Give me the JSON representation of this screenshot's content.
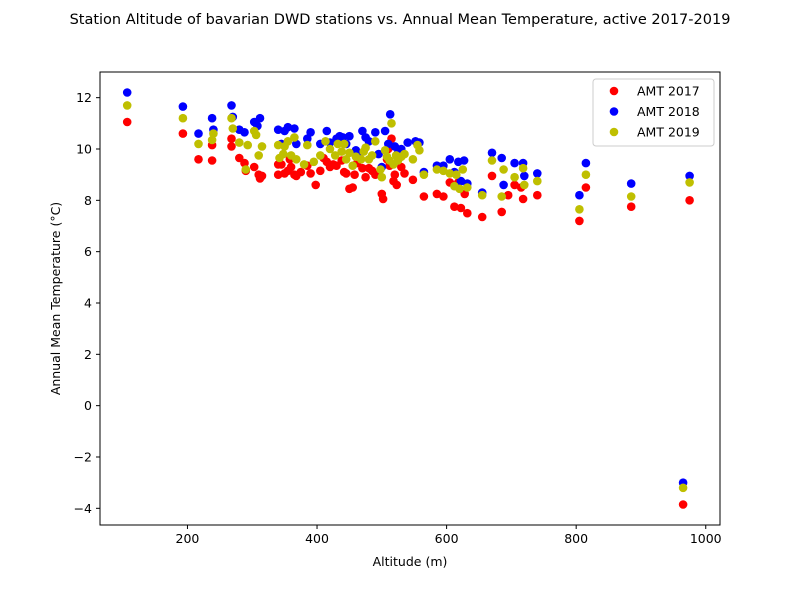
{
  "chart_data": {
    "type": "scatter",
    "title": "Station Altitude of bavarian DWD stations vs. Annual Mean Temperature, active 2017-2019",
    "xlabel": "Altitude (m)",
    "ylabel": "Annual Mean Temperature (°C)",
    "xlim": [
      65,
      1022
    ],
    "ylim": [
      -4.65,
      13.0
    ],
    "xticks": [
      200,
      400,
      600,
      800,
      1000
    ],
    "yticks": [
      -4,
      -2,
      0,
      2,
      4,
      6,
      8,
      10,
      12
    ],
    "ytick_labels": [
      "−4",
      "−2",
      "0",
      "2",
      "4",
      "6",
      "8",
      "10",
      "12"
    ],
    "grid": false,
    "legend_position": "top-right",
    "series": [
      {
        "name": "AMT 2017",
        "color": "#ff0000",
        "points": [
          [
            107,
            11.05
          ],
          [
            193,
            10.6
          ],
          [
            217,
            9.6
          ],
          [
            238,
            9.55
          ],
          [
            238,
            10.15
          ],
          [
            268,
            10.1
          ],
          [
            268,
            10.4
          ],
          [
            280,
            9.65
          ],
          [
            288,
            9.45
          ],
          [
            290,
            9.15
          ],
          [
            303,
            9.3
          ],
          [
            310,
            9.0
          ],
          [
            312,
            8.85
          ],
          [
            315,
            8.95
          ],
          [
            340,
            9.0
          ],
          [
            340,
            9.4
          ],
          [
            345,
            9.4
          ],
          [
            350,
            9.05
          ],
          [
            355,
            9.15
          ],
          [
            358,
            9.6
          ],
          [
            360,
            9.3
          ],
          [
            365,
            9.0
          ],
          [
            368,
            8.95
          ],
          [
            375,
            9.1
          ],
          [
            385,
            9.35
          ],
          [
            390,
            9.05
          ],
          [
            398,
            8.6
          ],
          [
            405,
            9.15
          ],
          [
            410,
            9.65
          ],
          [
            415,
            9.5
          ],
          [
            420,
            9.3
          ],
          [
            425,
            9.4
          ],
          [
            430,
            9.35
          ],
          [
            438,
            9.55
          ],
          [
            442,
            9.1
          ],
          [
            445,
            9.05
          ],
          [
            450,
            8.45
          ],
          [
            455,
            8.5
          ],
          [
            458,
            9.0
          ],
          [
            462,
            9.45
          ],
          [
            470,
            9.25
          ],
          [
            475,
            8.9
          ],
          [
            480,
            9.25
          ],
          [
            485,
            9.15
          ],
          [
            490,
            9.0
          ],
          [
            500,
            8.25
          ],
          [
            502,
            8.05
          ],
          [
            508,
            9.6
          ],
          [
            510,
            10.0
          ],
          [
            512,
            9.35
          ],
          [
            515,
            10.4
          ],
          [
            518,
            8.75
          ],
          [
            520,
            9.0
          ],
          [
            523,
            8.6
          ],
          [
            530,
            9.3
          ],
          [
            535,
            9.05
          ],
          [
            548,
            8.8
          ],
          [
            565,
            8.15
          ],
          [
            585,
            8.25
          ],
          [
            595,
            8.15
          ],
          [
            605,
            8.7
          ],
          [
            612,
            7.75
          ],
          [
            618,
            8.7
          ],
          [
            622,
            7.7
          ],
          [
            628,
            8.25
          ],
          [
            632,
            7.5
          ],
          [
            655,
            7.35
          ],
          [
            670,
            8.95
          ],
          [
            685,
            7.55
          ],
          [
            695,
            8.2
          ],
          [
            705,
            8.6
          ],
          [
            715,
            8.5
          ],
          [
            718,
            8.05
          ],
          [
            740,
            8.2
          ],
          [
            805,
            7.2
          ],
          [
            815,
            8.5
          ],
          [
            885,
            7.75
          ],
          [
            965,
            -3.85
          ],
          [
            975,
            8.0
          ]
        ]
      },
      {
        "name": "AMT 2018",
        "color": "#0000ff",
        "points": [
          [
            107,
            12.2
          ],
          [
            193,
            11.65
          ],
          [
            217,
            10.6
          ],
          [
            238,
            11.2
          ],
          [
            240,
            10.75
          ],
          [
            268,
            11.7
          ],
          [
            270,
            11.25
          ],
          [
            280,
            10.75
          ],
          [
            288,
            10.65
          ],
          [
            303,
            11.05
          ],
          [
            308,
            10.9
          ],
          [
            312,
            11.2
          ],
          [
            340,
            10.75
          ],
          [
            345,
            10.2
          ],
          [
            350,
            10.7
          ],
          [
            355,
            10.85
          ],
          [
            365,
            10.8
          ],
          [
            368,
            10.2
          ],
          [
            385,
            10.4
          ],
          [
            390,
            10.65
          ],
          [
            405,
            10.2
          ],
          [
            415,
            10.7
          ],
          [
            420,
            10.25
          ],
          [
            430,
            10.4
          ],
          [
            435,
            10.5
          ],
          [
            440,
            10.45
          ],
          [
            445,
            10.2
          ],
          [
            450,
            10.5
          ],
          [
            460,
            9.95
          ],
          [
            465,
            9.8
          ],
          [
            470,
            10.7
          ],
          [
            475,
            10.45
          ],
          [
            480,
            10.3
          ],
          [
            490,
            10.65
          ],
          [
            495,
            9.8
          ],
          [
            500,
            9.3
          ],
          [
            505,
            10.7
          ],
          [
            510,
            10.2
          ],
          [
            513,
            11.35
          ],
          [
            520,
            10.1
          ],
          [
            525,
            9.85
          ],
          [
            530,
            10.0
          ],
          [
            540,
            10.25
          ],
          [
            552,
            10.3
          ],
          [
            558,
            10.25
          ],
          [
            565,
            9.1
          ],
          [
            585,
            9.35
          ],
          [
            595,
            9.35
          ],
          [
            605,
            9.6
          ],
          [
            612,
            9.1
          ],
          [
            618,
            9.5
          ],
          [
            622,
            8.75
          ],
          [
            627,
            9.55
          ],
          [
            632,
            8.65
          ],
          [
            655,
            8.3
          ],
          [
            670,
            9.85
          ],
          [
            685,
            9.65
          ],
          [
            688,
            8.6
          ],
          [
            705,
            9.45
          ],
          [
            718,
            9.45
          ],
          [
            720,
            8.95
          ],
          [
            740,
            9.05
          ],
          [
            805,
            8.2
          ],
          [
            815,
            9.45
          ],
          [
            885,
            8.65
          ],
          [
            965,
            -3.0
          ],
          [
            975,
            8.95
          ]
        ]
      },
      {
        "name": "AMT 2019",
        "color": "#bfbf00",
        "points": [
          [
            107,
            11.7
          ],
          [
            193,
            11.2
          ],
          [
            217,
            10.2
          ],
          [
            238,
            10.35
          ],
          [
            240,
            10.6
          ],
          [
            268,
            11.2
          ],
          [
            270,
            10.8
          ],
          [
            280,
            10.25
          ],
          [
            290,
            9.2
          ],
          [
            293,
            10.15
          ],
          [
            303,
            10.7
          ],
          [
            306,
            10.55
          ],
          [
            310,
            9.75
          ],
          [
            315,
            10.1
          ],
          [
            340,
            10.15
          ],
          [
            342,
            9.65
          ],
          [
            348,
            9.8
          ],
          [
            350,
            10.1
          ],
          [
            355,
            10.3
          ],
          [
            360,
            9.75
          ],
          [
            365,
            10.45
          ],
          [
            368,
            9.6
          ],
          [
            380,
            9.4
          ],
          [
            385,
            10.15
          ],
          [
            395,
            9.5
          ],
          [
            405,
            9.75
          ],
          [
            413,
            10.3
          ],
          [
            420,
            10.0
          ],
          [
            428,
            9.75
          ],
          [
            432,
            10.2
          ],
          [
            438,
            9.9
          ],
          [
            442,
            10.2
          ],
          [
            445,
            9.6
          ],
          [
            450,
            9.85
          ],
          [
            455,
            9.35
          ],
          [
            460,
            9.7
          ],
          [
            468,
            9.6
          ],
          [
            472,
            9.9
          ],
          [
            475,
            10.05
          ],
          [
            480,
            9.6
          ],
          [
            485,
            9.75
          ],
          [
            490,
            10.3
          ],
          [
            498,
            9.2
          ],
          [
            500,
            8.9
          ],
          [
            505,
            9.95
          ],
          [
            508,
            9.7
          ],
          [
            512,
            9.55
          ],
          [
            515,
            11.0
          ],
          [
            518,
            9.4
          ],
          [
            522,
            9.75
          ],
          [
            525,
            9.55
          ],
          [
            530,
            9.7
          ],
          [
            535,
            9.8
          ],
          [
            548,
            9.6
          ],
          [
            555,
            10.15
          ],
          [
            558,
            9.95
          ],
          [
            565,
            9.0
          ],
          [
            585,
            9.2
          ],
          [
            595,
            9.15
          ],
          [
            605,
            9.05
          ],
          [
            612,
            8.55
          ],
          [
            615,
            9.0
          ],
          [
            620,
            8.45
          ],
          [
            625,
            9.2
          ],
          [
            632,
            8.5
          ],
          [
            655,
            8.2
          ],
          [
            670,
            9.55
          ],
          [
            685,
            8.15
          ],
          [
            688,
            9.2
          ],
          [
            705,
            8.9
          ],
          [
            718,
            9.25
          ],
          [
            720,
            8.6
          ],
          [
            740,
            8.75
          ],
          [
            805,
            7.65
          ],
          [
            815,
            9.0
          ],
          [
            885,
            8.15
          ],
          [
            965,
            -3.2
          ],
          [
            975,
            8.7
          ]
        ]
      }
    ]
  }
}
